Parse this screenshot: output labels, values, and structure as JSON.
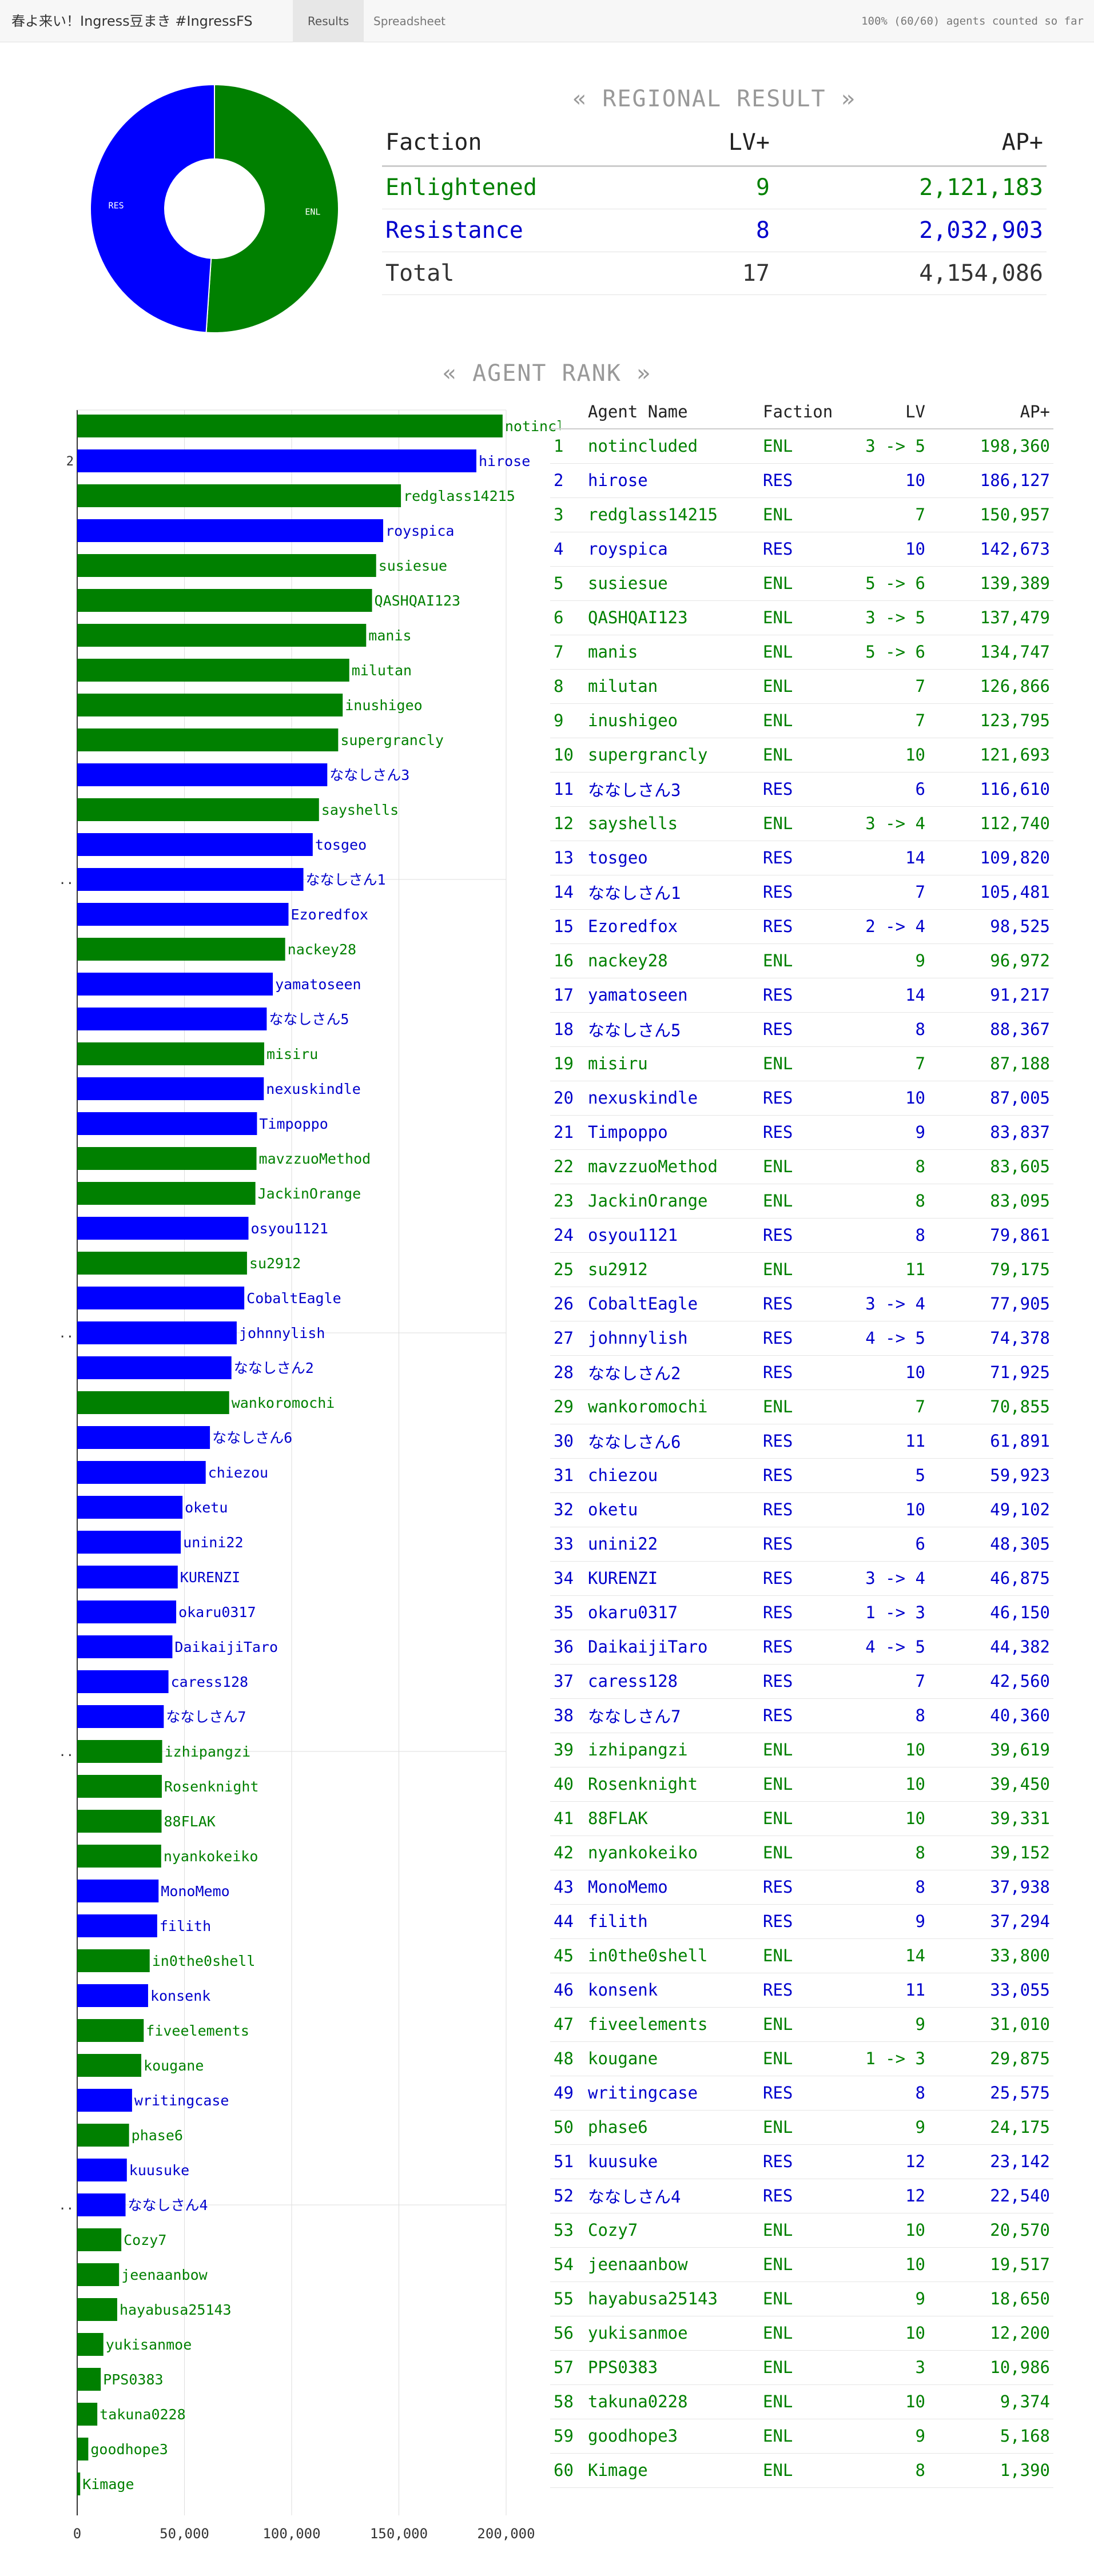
{
  "header": {
    "title": "春よ来い！Ingress豆まき #IngressFS",
    "tabs": [
      {
        "label": "Results",
        "active": true
      },
      {
        "label": "Spreadsheet",
        "active": false
      }
    ],
    "status": "100% (60/60) agents counted so far"
  },
  "colors": {
    "enl": "#008000",
    "res": "#0000ff",
    "enl_text": "#008000",
    "res_text": "#0000cc"
  },
  "regional": {
    "title": "« REGIONAL RESULT »",
    "columns": [
      "Faction",
      "LV+",
      "AP+"
    ],
    "rows": [
      {
        "faction": "Enlightened",
        "lv": "9",
        "ap": "2,121,183",
        "cls": "enl"
      },
      {
        "faction": "Resistance",
        "lv": "8",
        "ap": "2,032,903",
        "cls": "res"
      },
      {
        "faction": "Total",
        "lv": "17",
        "ap": "4,154,086",
        "cls": "plain"
      }
    ]
  },
  "pie_data": {
    "type": "pie",
    "slices": [
      {
        "label": "ENL",
        "value": 2121183,
        "faction": "ENL"
      },
      {
        "label": "RES",
        "value": 2032903,
        "faction": "RES"
      }
    ]
  },
  "rank": {
    "title": "« AGENT RANK »",
    "columns": [
      "Agent Name",
      "Faction",
      "LV",
      "AP+"
    ]
  },
  "chart_data": {
    "type": "bar",
    "orientation": "horizontal",
    "xlim": [
      0,
      200000
    ],
    "x_ticks": [
      "0",
      "50,000",
      "100,000",
      "150,000",
      "200,000"
    ],
    "y_tick_labels": [
      "2",
      "..",
      "..",
      "..",
      ".."
    ],
    "agents": [
      {
        "rank": 1,
        "name": "notincluded",
        "faction": "ENL",
        "lv": "3 -> 5",
        "ap": 198360
      },
      {
        "rank": 2,
        "name": "hirose",
        "faction": "RES",
        "lv": "10",
        "ap": 186127
      },
      {
        "rank": 3,
        "name": "redglass14215",
        "faction": "ENL",
        "lv": "7",
        "ap": 150957
      },
      {
        "rank": 4,
        "name": "royspica",
        "faction": "RES",
        "lv": "10",
        "ap": 142673
      },
      {
        "rank": 5,
        "name": "susiesue",
        "faction": "ENL",
        "lv": "5 -> 6",
        "ap": 139389
      },
      {
        "rank": 6,
        "name": "QASHQAI123",
        "faction": "ENL",
        "lv": "3 -> 5",
        "ap": 137479
      },
      {
        "rank": 7,
        "name": "manis",
        "faction": "ENL",
        "lv": "5 -> 6",
        "ap": 134747
      },
      {
        "rank": 8,
        "name": "milutan",
        "faction": "ENL",
        "lv": "7",
        "ap": 126866
      },
      {
        "rank": 9,
        "name": "inushigeo",
        "faction": "ENL",
        "lv": "7",
        "ap": 123795
      },
      {
        "rank": 10,
        "name": "supergrancly",
        "faction": "ENL",
        "lv": "10",
        "ap": 121693
      },
      {
        "rank": 11,
        "name": "ななしさん3",
        "faction": "RES",
        "lv": "6",
        "ap": 116610
      },
      {
        "rank": 12,
        "name": "sayshells",
        "faction": "ENL",
        "lv": "3 -> 4",
        "ap": 112740
      },
      {
        "rank": 13,
        "name": "tosgeo",
        "faction": "RES",
        "lv": "14",
        "ap": 109820
      },
      {
        "rank": 14,
        "name": "ななしさん1",
        "faction": "RES",
        "lv": "7",
        "ap": 105481
      },
      {
        "rank": 15,
        "name": "Ezoredfox",
        "faction": "RES",
        "lv": "2 -> 4",
        "ap": 98525
      },
      {
        "rank": 16,
        "name": "nackey28",
        "faction": "ENL",
        "lv": "9",
        "ap": 96972
      },
      {
        "rank": 17,
        "name": "yamatoseen",
        "faction": "RES",
        "lv": "14",
        "ap": 91217
      },
      {
        "rank": 18,
        "name": "ななしさん5",
        "faction": "RES",
        "lv": "8",
        "ap": 88367
      },
      {
        "rank": 19,
        "name": "misiru",
        "faction": "ENL",
        "lv": "7",
        "ap": 87188
      },
      {
        "rank": 20,
        "name": "nexuskindle",
        "faction": "RES",
        "lv": "10",
        "ap": 87005
      },
      {
        "rank": 21,
        "name": "Timpoppo",
        "faction": "RES",
        "lv": "9",
        "ap": 83837
      },
      {
        "rank": 22,
        "name": "mavzzuoMethod",
        "faction": "ENL",
        "lv": "8",
        "ap": 83605
      },
      {
        "rank": 23,
        "name": "JackinOrange",
        "faction": "ENL",
        "lv": "8",
        "ap": 83095
      },
      {
        "rank": 24,
        "name": "osyou1121",
        "faction": "RES",
        "lv": "8",
        "ap": 79861
      },
      {
        "rank": 25,
        "name": "su2912",
        "faction": "ENL",
        "lv": "11",
        "ap": 79175
      },
      {
        "rank": 26,
        "name": "CobaltEagle",
        "faction": "RES",
        "lv": "3 -> 4",
        "ap": 77905
      },
      {
        "rank": 27,
        "name": "johnnylish",
        "faction": "RES",
        "lv": "4 -> 5",
        "ap": 74378
      },
      {
        "rank": 28,
        "name": "ななしさん2",
        "faction": "RES",
        "lv": "10",
        "ap": 71925
      },
      {
        "rank": 29,
        "name": "wankoromochi",
        "faction": "ENL",
        "lv": "7",
        "ap": 70855
      },
      {
        "rank": 30,
        "name": "ななしさん6",
        "faction": "RES",
        "lv": "11",
        "ap": 61891
      },
      {
        "rank": 31,
        "name": "chiezou",
        "faction": "RES",
        "lv": "5",
        "ap": 59923
      },
      {
        "rank": 32,
        "name": "oketu",
        "faction": "RES",
        "lv": "10",
        "ap": 49102
      },
      {
        "rank": 33,
        "name": "unini22",
        "faction": "RES",
        "lv": "6",
        "ap": 48305
      },
      {
        "rank": 34,
        "name": "KURENZI",
        "faction": "RES",
        "lv": "3 -> 4",
        "ap": 46875
      },
      {
        "rank": 35,
        "name": "okaru0317",
        "faction": "RES",
        "lv": "1 -> 3",
        "ap": 46150
      },
      {
        "rank": 36,
        "name": "DaikaijiTaro",
        "faction": "RES",
        "lv": "4 -> 5",
        "ap": 44382
      },
      {
        "rank": 37,
        "name": "caress128",
        "faction": "RES",
        "lv": "7",
        "ap": 42560
      },
      {
        "rank": 38,
        "name": "ななしさん7",
        "faction": "RES",
        "lv": "8",
        "ap": 40360
      },
      {
        "rank": 39,
        "name": "izhipangzi",
        "faction": "ENL",
        "lv": "10",
        "ap": 39619
      },
      {
        "rank": 40,
        "name": "Rosenknight",
        "faction": "ENL",
        "lv": "10",
        "ap": 39450
      },
      {
        "rank": 41,
        "name": "88FLAK",
        "faction": "ENL",
        "lv": "10",
        "ap": 39331
      },
      {
        "rank": 42,
        "name": "nyankokeiko",
        "faction": "ENL",
        "lv": "8",
        "ap": 39152
      },
      {
        "rank": 43,
        "name": "MonoMemo",
        "faction": "RES",
        "lv": "8",
        "ap": 37938
      },
      {
        "rank": 44,
        "name": "filith",
        "faction": "RES",
        "lv": "9",
        "ap": 37294
      },
      {
        "rank": 45,
        "name": "in0the0shell",
        "faction": "ENL",
        "lv": "14",
        "ap": 33800
      },
      {
        "rank": 46,
        "name": "konsenk",
        "faction": "RES",
        "lv": "11",
        "ap": 33055
      },
      {
        "rank": 47,
        "name": "fiveelements",
        "faction": "ENL",
        "lv": "9",
        "ap": 31010
      },
      {
        "rank": 48,
        "name": "kougane",
        "faction": "ENL",
        "lv": "1 -> 3",
        "ap": 29875
      },
      {
        "rank": 49,
        "name": "writingcase",
        "faction": "RES",
        "lv": "8",
        "ap": 25575
      },
      {
        "rank": 50,
        "name": "phase6",
        "faction": "ENL",
        "lv": "9",
        "ap": 24175
      },
      {
        "rank": 51,
        "name": "kuusuke",
        "faction": "RES",
        "lv": "12",
        "ap": 23142
      },
      {
        "rank": 52,
        "name": "ななしさん4",
        "faction": "RES",
        "lv": "12",
        "ap": 22540
      },
      {
        "rank": 53,
        "name": "Cozy7",
        "faction": "ENL",
        "lv": "10",
        "ap": 20570
      },
      {
        "rank": 54,
        "name": "jeenaanbow",
        "faction": "ENL",
        "lv": "10",
        "ap": 19517
      },
      {
        "rank": 55,
        "name": "hayabusa25143",
        "faction": "ENL",
        "lv": "9",
        "ap": 18650
      },
      {
        "rank": 56,
        "name": "yukisanmoe",
        "faction": "ENL",
        "lv": "10",
        "ap": 12200
      },
      {
        "rank": 57,
        "name": "PPS0383",
        "faction": "ENL",
        "lv": "3",
        "ap": 10986
      },
      {
        "rank": 58,
        "name": "takuna0228",
        "faction": "ENL",
        "lv": "10",
        "ap": 9374
      },
      {
        "rank": 59,
        "name": "goodhope3",
        "faction": "ENL",
        "lv": "9",
        "ap": 5168
      },
      {
        "rank": 60,
        "name": "Kimage",
        "faction": "ENL",
        "lv": "8",
        "ap": 1390
      }
    ]
  }
}
